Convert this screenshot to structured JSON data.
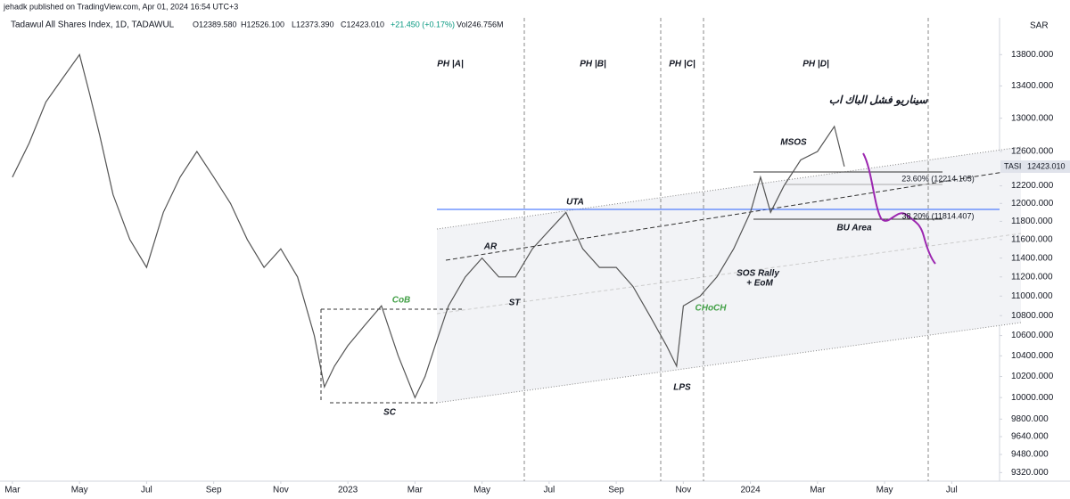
{
  "header": {
    "published": "jehadk published on TradingView.com, Apr 01, 2024 16:54 UTC+3",
    "symbol": "Tadawul All Shares Index, 1D, TADAWUL",
    "ohlc": [
      "O12389.580",
      "H12526.100",
      "L12373.390",
      "C12423.010",
      "+21.450 (+0.17%)",
      "Vol246.756M"
    ]
  },
  "currency": "SAR",
  "price_tag": {
    "symbol": "TASI",
    "value": "12423.010"
  },
  "annotations": [
    "PH |A|",
    "PH |B|",
    "PH |C|",
    "PH |D|",
    "سيناريو فشل الباك اب",
    "MSOS",
    "UTA",
    "AR",
    "ST",
    "CoB",
    "CHoCH",
    "SOS Rally",
    "+ EoM",
    "SC",
    "LPS",
    "BU Area",
    "23.60% (12214.105)",
    "38.20% (11814.407)"
  ],
  "chart_data": {
    "type": "line",
    "log": true,
    "x": [
      0,
      0.5,
      1,
      1.5,
      2,
      2.3,
      2.6,
      3,
      3.5,
      4,
      4.5,
      5,
      5.5,
      6,
      6.5,
      7,
      7.5,
      8,
      8.5,
      9,
      9.3,
      9.6,
      10,
      10.5,
      11,
      11.5,
      12,
      12.3,
      12.6,
      13,
      13.5,
      14,
      14.5,
      15,
      15.5,
      16,
      16.5,
      17,
      17.5,
      18,
      18.5,
      19,
      19.5,
      19.8,
      20,
      20.5,
      21,
      21.5,
      22,
      22.3,
      22.6,
      23,
      23.5,
      24,
      24.5,
      24.8
    ],
    "series": [
      {
        "name": "TASI",
        "color": "#555555",
        "values": [
          12300,
          12700,
          13200,
          13500,
          13800,
          13300,
          12800,
          12100,
          11600,
          11300,
          11900,
          12300,
          12600,
          12300,
          12000,
          11600,
          11300,
          11500,
          11200,
          10600,
          10100,
          10300,
          10500,
          10700,
          10900,
          10400,
          10000,
          10200,
          10500,
          10900,
          11200,
          11400,
          11200,
          11200,
          11500,
          11700,
          11900,
          11500,
          11300,
          11300,
          11100,
          10800,
          10500,
          10300,
          10900,
          11000,
          11200,
          11500,
          11900,
          12300,
          11900,
          12200,
          12500,
          12600,
          12900,
          12423.01
        ]
      }
    ],
    "xlim": [
      -0.37,
      29.4
    ],
    "xticks": [
      {
        "value": 0,
        "label": "Mar"
      },
      {
        "value": 2,
        "label": "May"
      },
      {
        "value": 4,
        "label": "Jul"
      },
      {
        "value": 6,
        "label": "Sep"
      },
      {
        "value": 8,
        "label": "Nov"
      },
      {
        "value": 10,
        "label": "2023"
      },
      {
        "value": 12,
        "label": "Mar"
      },
      {
        "value": 14,
        "label": "May"
      },
      {
        "value": 16,
        "label": "Jul"
      },
      {
        "value": 18,
        "label": "Sep"
      },
      {
        "value": 20,
        "label": "Nov"
      },
      {
        "value": 22,
        "label": "2024"
      },
      {
        "value": 24,
        "label": "Mar"
      },
      {
        "value": 26,
        "label": "May"
      },
      {
        "value": 28,
        "label": "Jul"
      }
    ],
    "ylim": [
      9245,
      14190
    ],
    "yticks": [
      {
        "value": 13800,
        "label": "13800.000"
      },
      {
        "value": 13400,
        "label": "13400.000"
      },
      {
        "value": 13000,
        "label": "13000.000"
      },
      {
        "value": 12600,
        "label": "12600.000"
      },
      {
        "value": 12200,
        "label": "12200.000"
      },
      {
        "value": 12000,
        "label": "12000.000"
      },
      {
        "value": 11800,
        "label": "11800.000"
      },
      {
        "value": 11600,
        "label": "11600.000"
      },
      {
        "value": 11400,
        "label": "11400.000"
      },
      {
        "value": 11200,
        "label": "11200.000"
      },
      {
        "value": 11000,
        "label": "11000.000"
      },
      {
        "value": 10800,
        "label": "10800.000"
      },
      {
        "value": 10600,
        "label": "10600.000"
      },
      {
        "value": 10400,
        "label": "10400.000"
      },
      {
        "value": 10200,
        "label": "10200.000"
      },
      {
        "value": 10000,
        "label": "10000.000"
      },
      {
        "value": 9800,
        "label": "9800.000"
      },
      {
        "value": 9640,
        "label": "9640.000"
      },
      {
        "value": 9480,
        "label": "9480.000"
      },
      {
        "value": 9320,
        "label": "9320.000"
      }
    ]
  }
}
